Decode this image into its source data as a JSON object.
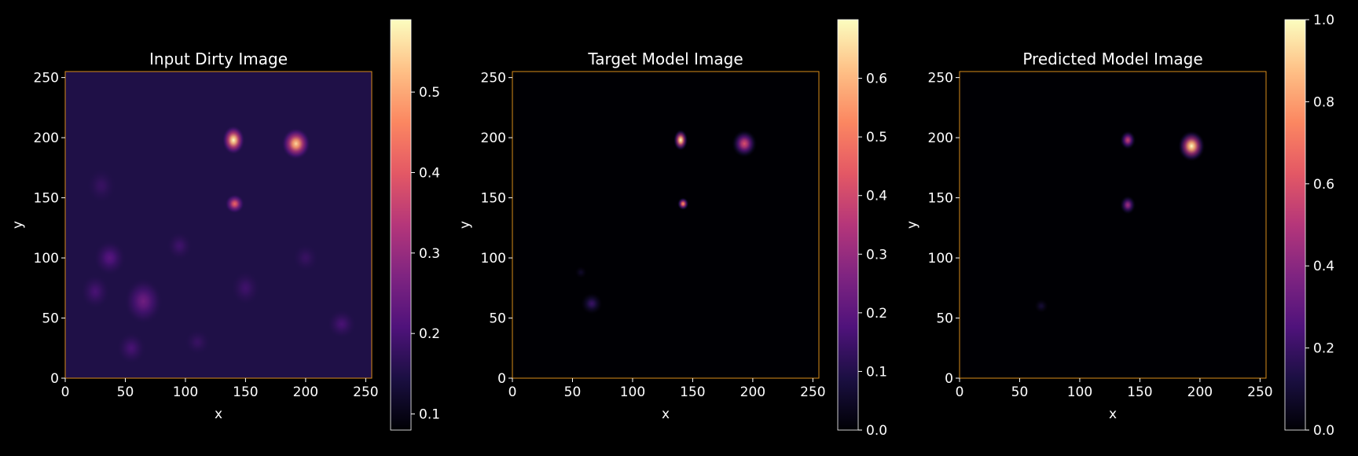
{
  "chart_data": [
    {
      "type": "heatmap",
      "title": "Input Dirty Image",
      "xlabel": "x",
      "ylabel": "y",
      "xlim": [
        0,
        255
      ],
      "ylim": [
        0,
        255
      ],
      "xticks": [
        "0",
        "50",
        "100",
        "150",
        "200",
        "250"
      ],
      "yticks": [
        "0",
        "50",
        "100",
        "150",
        "200",
        "250"
      ],
      "colormap": "magma",
      "colorbar": {
        "min": 0.08,
        "max": 0.59,
        "ticks": [
          "0.1",
          "0.2",
          "0.3",
          "0.4",
          "0.5"
        ]
      },
      "background_level": 0.15,
      "sources": [
        {
          "x": 140,
          "y": 198,
          "peak": 0.59
        },
        {
          "x": 192,
          "y": 195,
          "peak": 0.55
        },
        {
          "x": 141,
          "y": 145,
          "peak": 0.42
        },
        {
          "x": 65,
          "y": 64,
          "peak": 0.25
        },
        {
          "x": 37,
          "y": 100,
          "peak": 0.22
        },
        {
          "x": 55,
          "y": 25,
          "peak": 0.2
        },
        {
          "x": 25,
          "y": 72,
          "peak": 0.2
        },
        {
          "x": 150,
          "y": 75,
          "peak": 0.19
        },
        {
          "x": 230,
          "y": 45,
          "peak": 0.2
        },
        {
          "x": 95,
          "y": 110,
          "peak": 0.19
        },
        {
          "x": 30,
          "y": 160,
          "peak": 0.18
        },
        {
          "x": 200,
          "y": 100,
          "peak": 0.18
        },
        {
          "x": 110,
          "y": 30,
          "peak": 0.18
        }
      ]
    },
    {
      "type": "heatmap",
      "title": "Target Model Image",
      "xlabel": "x",
      "ylabel": "y",
      "xlim": [
        0,
        255
      ],
      "ylim": [
        0,
        255
      ],
      "xticks": [
        "0",
        "50",
        "100",
        "150",
        "200",
        "250"
      ],
      "yticks": [
        "0",
        "50",
        "100",
        "150",
        "200",
        "250"
      ],
      "colormap": "magma",
      "colorbar": {
        "min": 0.0,
        "max": 0.7,
        "ticks": [
          "0.0",
          "0.1",
          "0.2",
          "0.3",
          "0.4",
          "0.5",
          "0.6"
        ]
      },
      "background_level": 0.0,
      "sources": [
        {
          "x": 140,
          "y": 198,
          "peak": 0.7
        },
        {
          "x": 193,
          "y": 195,
          "peak": 0.42
        },
        {
          "x": 142,
          "y": 145,
          "peak": 0.55
        },
        {
          "x": 66,
          "y": 62,
          "peak": 0.14
        },
        {
          "x": 57,
          "y": 88,
          "peak": 0.05
        }
      ]
    },
    {
      "type": "heatmap",
      "title": "Predicted Model Image",
      "xlabel": "x",
      "ylabel": "y",
      "xlim": [
        0,
        255
      ],
      "ylim": [
        0,
        255
      ],
      "xticks": [
        "0",
        "50",
        "100",
        "150",
        "200",
        "250"
      ],
      "yticks": [
        "0",
        "50",
        "100",
        "150",
        "200",
        "250"
      ],
      "colormap": "magma",
      "colorbar": {
        "min": 0.0,
        "max": 1.0,
        "ticks": [
          "0.0",
          "0.2",
          "0.4",
          "0.6",
          "0.8",
          "1.0"
        ]
      },
      "background_level": 0.0,
      "sources": [
        {
          "x": 193,
          "y": 193,
          "peak": 1.0
        },
        {
          "x": 140,
          "y": 198,
          "peak": 0.55
        },
        {
          "x": 140,
          "y": 144,
          "peak": 0.45
        },
        {
          "x": 68,
          "y": 60,
          "peak": 0.1
        }
      ]
    }
  ]
}
